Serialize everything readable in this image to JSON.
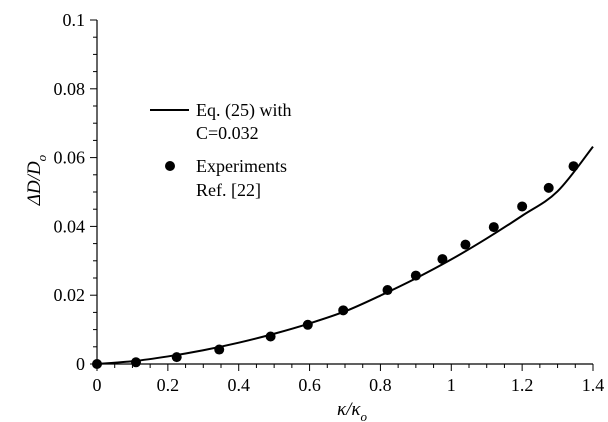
{
  "chart_data": {
    "type": "scatter",
    "title": "",
    "xlabel": "κ/κ",
    "xlabel_sub": "o",
    "ylabel": "ΔD/D",
    "ylabel_sub": "o",
    "xlim": [
      0,
      1.4
    ],
    "ylim": [
      0,
      0.1
    ],
    "x_ticks": [
      0,
      0.2,
      0.4,
      0.6,
      0.8,
      1,
      1.2,
      1.4
    ],
    "x_tick_labels": [
      "0",
      "0.2",
      "0.4",
      "0.6",
      "0.8",
      "1",
      "1.2",
      "1.4"
    ],
    "y_ticks": [
      0,
      0.02,
      0.04,
      0.06,
      0.08,
      0.1
    ],
    "y_tick_labels": [
      "0",
      "0.02",
      "0.04",
      "0.06",
      "0.08",
      "0.1"
    ],
    "grid": false,
    "legend_position": "upper-left",
    "series": [
      {
        "name": "Eq. (25) with C=0.032",
        "legend_lines": [
          "Eq. (25) with",
          "C=0.032"
        ],
        "kind": "line",
        "color": "#000000",
        "x": [
          0,
          0.1,
          0.2,
          0.3,
          0.4,
          0.5,
          0.6,
          0.7,
          0.8,
          0.9,
          1.0,
          1.1,
          1.2,
          1.3,
          1.4
        ],
        "y": [
          0,
          0.0008,
          0.0022,
          0.004,
          0.0062,
          0.0088,
          0.0118,
          0.0153,
          0.0199,
          0.0249,
          0.0304,
          0.0365,
          0.0431,
          0.0502,
          0.0632
        ]
      },
      {
        "name": "Experiments Ref. [22]",
        "legend_lines": [
          "Experiments",
          "Ref. [22]"
        ],
        "kind": "scatter",
        "color": "#000000",
        "x": [
          0.0,
          0.11,
          0.225,
          0.345,
          0.49,
          0.595,
          0.695,
          0.82,
          0.9,
          0.975,
          1.04,
          1.12,
          1.2,
          1.275,
          1.345
        ],
        "y": [
          0.0,
          0.0005,
          0.002,
          0.0042,
          0.008,
          0.0114,
          0.0156,
          0.0215,
          0.0257,
          0.0305,
          0.0347,
          0.0398,
          0.0458,
          0.0512,
          0.0575
        ]
      }
    ]
  }
}
